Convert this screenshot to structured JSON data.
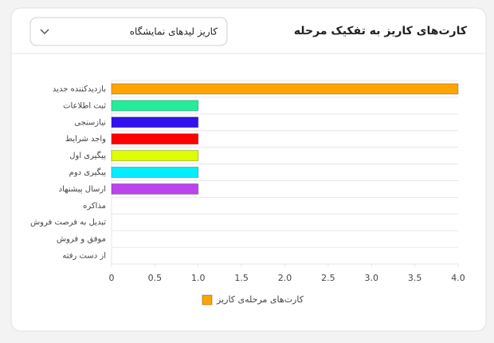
{
  "header": {
    "title": "کارت‌های کاریز به تفکیک مرحله",
    "dropdown": "کاریز لیدهای نمایشگاه"
  },
  "chart_data": {
    "type": "hbar",
    "categories": [
      "بازدیدکننده جدید",
      "ثبت اطلاعات",
      "نیازسنجی",
      "واجد شرایط",
      "پیگیری اول",
      "پیگیری دوم",
      "ارسال پیشنهاد",
      "مذاکره",
      "تبدیل به فرصت فروش",
      "موفق و فروش",
      "از دست رفته"
    ],
    "series": [
      {
        "name": "کارت‌های مرحله‌ی کاریز",
        "color": "#ffa500",
        "values": [
          4,
          1,
          1,
          1,
          1,
          1,
          1,
          0,
          0,
          0,
          0
        ],
        "colors": [
          "#ffa500",
          "#22ee99",
          "#3311ee",
          "#ff0000",
          "#ddff00",
          "#00eeff",
          "#bb44ee",
          "#999999",
          "#999999",
          "#999999",
          "#999999"
        ]
      }
    ],
    "xlim": [
      0,
      4
    ],
    "xticks": [
      0,
      0.5,
      {
        "value": 1,
        "label": "1.0"
      },
      1.5,
      {
        "value": 2,
        "label": "2.0"
      },
      2.5,
      {
        "value": 3,
        "label": "3.0"
      },
      3.5,
      {
        "value": 4,
        "label": "4.0"
      }
    ]
  }
}
